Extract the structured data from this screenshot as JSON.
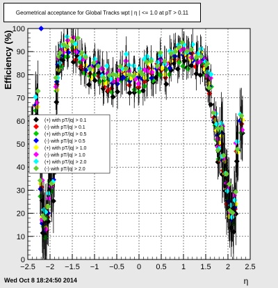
{
  "title": "Geometrical acceptance for Global Tracks wpt | η | <= 1.0 at pT > 0.11",
  "footer": "Wed Oct  8 18:24:50 2014",
  "chart_data": {
    "type": "scatter",
    "title": "Geometrical acceptance for Global Tracks wpt | η | <= 1.0 at pT > 0.11",
    "xlabel": "η",
    "ylabel": "Efficiency (%)",
    "xlim": [
      -2.5,
      2.5
    ],
    "ylim": [
      0,
      100
    ],
    "x_ticks": [
      "−2.5",
      "−2",
      "−1.5",
      "−1",
      "−0.5",
      "0",
      "0.5",
      "1",
      "1.5",
      "2",
      "2.5"
    ],
    "y_ticks": [
      "0",
      "10",
      "20",
      "30",
      "40",
      "50",
      "60",
      "70",
      "80",
      "90",
      "100"
    ],
    "grid": true,
    "legend_position": "left-middle",
    "series": [
      {
        "name": "(+) with pT/|q| > 0.1",
        "color": "#000000",
        "offset": -2.0
      },
      {
        "name": "(-) with pT/|q| > 0.1",
        "color": "#ff0000",
        "offset": 1.0
      },
      {
        "name": "(+) with pT/|q| > 0.5",
        "color": "#00cc00",
        "offset": 0.0
      },
      {
        "name": "(-) with pT/|q| > 0.5",
        "color": "#0000ff",
        "offset": 2.5
      },
      {
        "name": "(+) with pT/|q| > 1.0",
        "color": "#ffff00",
        "offset": 3.0
      },
      {
        "name": "(-) with pT/|q| > 1.0",
        "color": "#ff00ff",
        "offset": 4.0
      },
      {
        "name": "(+) with pT/|q| > 2.0",
        "color": "#00ffff",
        "offset": 6.0
      },
      {
        "name": "(-) with pT/|q| > 2.0",
        "color": "#66cc33",
        "offset": 5.0
      }
    ],
    "profile_x": [
      -2.4,
      -2.3,
      -2.2,
      -2.15,
      -2.1,
      -2.05,
      -2.0,
      -1.95,
      -1.9,
      -1.85,
      -1.8,
      -1.75,
      -1.7,
      -1.6,
      -1.5,
      -1.4,
      -1.3,
      -1.2,
      -1.1,
      -1.0,
      -0.9,
      -0.8,
      -0.7,
      -0.6,
      -0.5,
      -0.4,
      -0.3,
      -0.2,
      -0.1,
      0.0,
      0.1,
      0.2,
      0.3,
      0.4,
      0.5,
      0.6,
      0.7,
      0.8,
      0.9,
      1.0,
      1.1,
      1.2,
      1.3,
      1.4,
      1.5,
      1.55,
      1.6,
      1.7,
      1.75,
      1.8,
      1.85,
      1.9,
      1.95,
      2.0,
      2.05,
      2.1,
      2.15,
      2.2,
      2.3
    ],
    "profile_y": [
      50,
      66,
      30,
      14,
      12,
      20,
      36,
      30,
      45,
      72,
      82,
      85,
      88,
      88,
      90,
      88,
      84,
      82,
      78,
      80,
      80,
      76,
      75,
      74,
      76,
      78,
      80,
      77,
      76,
      75,
      78,
      80,
      79,
      81,
      82,
      80,
      83,
      85,
      87,
      86,
      85,
      86,
      84,
      84,
      82,
      78,
      72,
      60,
      50,
      45,
      52,
      40,
      32,
      25,
      18,
      14,
      22,
      45,
      55
    ]
  }
}
